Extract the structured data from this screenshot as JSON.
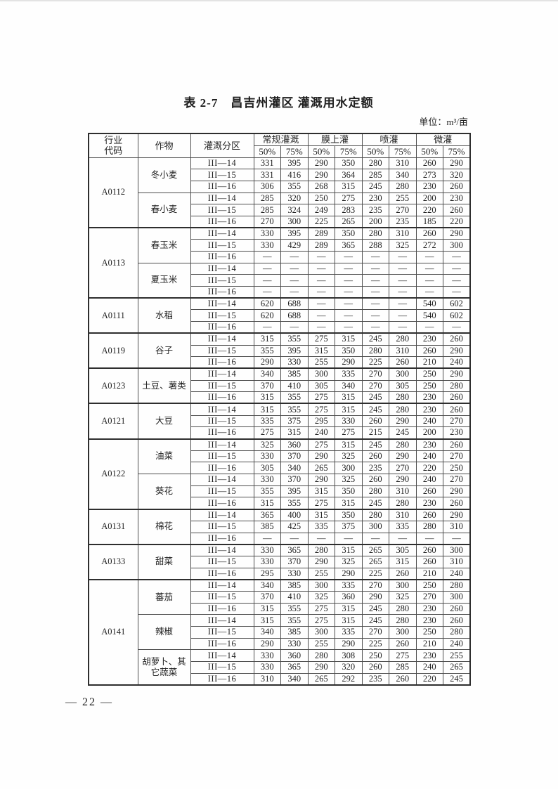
{
  "page": {
    "title": "表 2-7　昌吉州灌区 灌溉用水定额",
    "unit_label": "单位：m³/亩",
    "page_number": "— 22 —"
  },
  "table": {
    "headers": {
      "industry_code": "行业\n代码",
      "crop": "作物",
      "zone": "灌溉分区",
      "groups": [
        "常规灌溉",
        "膜上灌",
        "喷灌",
        "微灌"
      ],
      "percent_labels": [
        "50%",
        "75%"
      ]
    },
    "groups": [
      {
        "code": "A0112",
        "crops": [
          {
            "name": "冬小麦",
            "rows": [
              {
                "zone": "III—14",
                "values": [
                  "331",
                  "395",
                  "290",
                  "350",
                  "280",
                  "310",
                  "260",
                  "290"
                ]
              },
              {
                "zone": "III—15",
                "values": [
                  "331",
                  "416",
                  "290",
                  "364",
                  "285",
                  "340",
                  "273",
                  "320"
                ]
              },
              {
                "zone": "III—16",
                "values": [
                  "306",
                  "355",
                  "268",
                  "315",
                  "245",
                  "280",
                  "230",
                  "260"
                ]
              }
            ]
          },
          {
            "name": "春小麦",
            "rows": [
              {
                "zone": "III—14",
                "values": [
                  "285",
                  "320",
                  "250",
                  "275",
                  "230",
                  "255",
                  "200",
                  "230"
                ]
              },
              {
                "zone": "III—15",
                "values": [
                  "285",
                  "324",
                  "249",
                  "283",
                  "235",
                  "270",
                  "220",
                  "260"
                ]
              },
              {
                "zone": "III—16",
                "values": [
                  "270",
                  "300",
                  "225",
                  "265",
                  "200",
                  "235",
                  "185",
                  "220"
                ]
              }
            ]
          }
        ]
      },
      {
        "code": "A0113",
        "crops": [
          {
            "name": "春玉米",
            "rows": [
              {
                "zone": "III—14",
                "values": [
                  "330",
                  "395",
                  "289",
                  "350",
                  "280",
                  "310",
                  "260",
                  "290"
                ]
              },
              {
                "zone": "III—15",
                "values": [
                  "330",
                  "429",
                  "289",
                  "365",
                  "288",
                  "325",
                  "272",
                  "300"
                ]
              },
              {
                "zone": "III—16",
                "values": [
                  "—",
                  "—",
                  "—",
                  "—",
                  "—",
                  "—",
                  "—",
                  "—"
                ]
              }
            ]
          },
          {
            "name": "夏玉米",
            "rows": [
              {
                "zone": "III—14",
                "values": [
                  "—",
                  "—",
                  "—",
                  "—",
                  "—",
                  "—",
                  "—",
                  "—"
                ]
              },
              {
                "zone": "III—15",
                "values": [
                  "—",
                  "—",
                  "—",
                  "—",
                  "—",
                  "—",
                  "—",
                  "—"
                ]
              },
              {
                "zone": "III—16",
                "values": [
                  "—",
                  "—",
                  "—",
                  "—",
                  "—",
                  "—",
                  "—",
                  "—"
                ]
              }
            ]
          }
        ]
      },
      {
        "code": "A0111",
        "crops": [
          {
            "name": "水稻",
            "rows": [
              {
                "zone": "III—14",
                "values": [
                  "620",
                  "688",
                  "—",
                  "—",
                  "—",
                  "—",
                  "540",
                  "602"
                ]
              },
              {
                "zone": "III—15",
                "values": [
                  "620",
                  "688",
                  "—",
                  "—",
                  "—",
                  "—",
                  "540",
                  "602"
                ]
              },
              {
                "zone": "III—16",
                "values": [
                  "—",
                  "—",
                  "—",
                  "—",
                  "—",
                  "—",
                  "—",
                  "—"
                ]
              }
            ]
          }
        ]
      },
      {
        "code": "A0119",
        "crops": [
          {
            "name": "谷子",
            "rows": [
              {
                "zone": "III—14",
                "values": [
                  "315",
                  "355",
                  "275",
                  "315",
                  "245",
                  "280",
                  "230",
                  "260"
                ]
              },
              {
                "zone": "III—15",
                "values": [
                  "355",
                  "395",
                  "315",
                  "350",
                  "280",
                  "310",
                  "260",
                  "290"
                ]
              },
              {
                "zone": "III—16",
                "values": [
                  "290",
                  "330",
                  "255",
                  "290",
                  "225",
                  "260",
                  "210",
                  "240"
                ]
              }
            ]
          }
        ]
      },
      {
        "code": "A0123",
        "crops": [
          {
            "name": "土豆、薯类",
            "rows": [
              {
                "zone": "III—14",
                "values": [
                  "340",
                  "385",
                  "300",
                  "335",
                  "270",
                  "300",
                  "250",
                  "290"
                ]
              },
              {
                "zone": "III—15",
                "values": [
                  "370",
                  "410",
                  "305",
                  "340",
                  "270",
                  "305",
                  "250",
                  "280"
                ]
              },
              {
                "zone": "III—16",
                "values": [
                  "315",
                  "355",
                  "275",
                  "315",
                  "245",
                  "280",
                  "230",
                  "260"
                ]
              }
            ]
          }
        ]
      },
      {
        "code": "A0121",
        "crops": [
          {
            "name": "大豆",
            "rows": [
              {
                "zone": "III—14",
                "values": [
                  "315",
                  "355",
                  "275",
                  "315",
                  "245",
                  "280",
                  "230",
                  "260"
                ]
              },
              {
                "zone": "III—15",
                "values": [
                  "335",
                  "375",
                  "295",
                  "330",
                  "260",
                  "290",
                  "240",
                  "270"
                ]
              },
              {
                "zone": "III—16",
                "values": [
                  "275",
                  "315",
                  "240",
                  "275",
                  "215",
                  "245",
                  "200",
                  "230"
                ]
              }
            ]
          }
        ]
      },
      {
        "code": "A0122",
        "crops": [
          {
            "name": "油菜",
            "rows": [
              {
                "zone": "III—14",
                "values": [
                  "325",
                  "360",
                  "275",
                  "315",
                  "245",
                  "280",
                  "230",
                  "260"
                ]
              },
              {
                "zone": "III—15",
                "values": [
                  "330",
                  "370",
                  "290",
                  "325",
                  "260",
                  "290",
                  "240",
                  "270"
                ]
              },
              {
                "zone": "III—16",
                "values": [
                  "305",
                  "340",
                  "265",
                  "300",
                  "235",
                  "270",
                  "220",
                  "250"
                ]
              }
            ]
          },
          {
            "name": "葵花",
            "rows": [
              {
                "zone": "III—14",
                "values": [
                  "330",
                  "370",
                  "290",
                  "325",
                  "260",
                  "290",
                  "240",
                  "270"
                ]
              },
              {
                "zone": "III—15",
                "values": [
                  "355",
                  "395",
                  "315",
                  "350",
                  "280",
                  "310",
                  "260",
                  "290"
                ]
              },
              {
                "zone": "III—16",
                "values": [
                  "315",
                  "355",
                  "275",
                  "315",
                  "245",
                  "280",
                  "230",
                  "260"
                ]
              }
            ]
          }
        ]
      },
      {
        "code": "A0131",
        "crops": [
          {
            "name": "棉花",
            "rows": [
              {
                "zone": "III—14",
                "values": [
                  "365",
                  "400",
                  "315",
                  "350",
                  "280",
                  "310",
                  "260",
                  "290"
                ]
              },
              {
                "zone": "III—15",
                "values": [
                  "385",
                  "425",
                  "335",
                  "375",
                  "300",
                  "335",
                  "280",
                  "310"
                ]
              },
              {
                "zone": "III—16",
                "values": [
                  "—",
                  "—",
                  "—",
                  "—",
                  "—",
                  "—",
                  "—",
                  "—"
                ]
              }
            ]
          }
        ]
      },
      {
        "code": "A0133",
        "crops": [
          {
            "name": "甜菜",
            "rows": [
              {
                "zone": "III—14",
                "values": [
                  "330",
                  "365",
                  "280",
                  "315",
                  "265",
                  "305",
                  "260",
                  "300"
                ]
              },
              {
                "zone": "III—15",
                "values": [
                  "330",
                  "370",
                  "290",
                  "325",
                  "265",
                  "315",
                  "260",
                  "310"
                ]
              },
              {
                "zone": "III—16",
                "values": [
                  "295",
                  "330",
                  "255",
                  "290",
                  "225",
                  "260",
                  "210",
                  "240"
                ]
              }
            ]
          }
        ]
      },
      {
        "code": "A0141",
        "crops": [
          {
            "name": "蕃茄",
            "rows": [
              {
                "zone": "III—14",
                "values": [
                  "340",
                  "385",
                  "300",
                  "335",
                  "270",
                  "300",
                  "250",
                  "280"
                ]
              },
              {
                "zone": "III—15",
                "values": [
                  "370",
                  "410",
                  "325",
                  "360",
                  "290",
                  "325",
                  "270",
                  "300"
                ]
              },
              {
                "zone": "III—16",
                "values": [
                  "315",
                  "355",
                  "275",
                  "315",
                  "245",
                  "280",
                  "230",
                  "260"
                ]
              }
            ]
          },
          {
            "name": "辣椒",
            "rows": [
              {
                "zone": "III—14",
                "values": [
                  "315",
                  "355",
                  "275",
                  "315",
                  "245",
                  "280",
                  "230",
                  "260"
                ]
              },
              {
                "zone": "III—15",
                "values": [
                  "340",
                  "385",
                  "300",
                  "335",
                  "270",
                  "300",
                  "250",
                  "280"
                ]
              },
              {
                "zone": "III—16",
                "values": [
                  "290",
                  "330",
                  "255",
                  "290",
                  "225",
                  "260",
                  "210",
                  "240"
                ]
              }
            ]
          },
          {
            "name": "胡萝卜、其它蔬菜",
            "rows": [
              {
                "zone": "III—14",
                "values": [
                  "330",
                  "360",
                  "280",
                  "308",
                  "250",
                  "275",
                  "230",
                  "255"
                ]
              },
              {
                "zone": "III—15",
                "values": [
                  "330",
                  "365",
                  "290",
                  "320",
                  "260",
                  "285",
                  "240",
                  "265"
                ]
              },
              {
                "zone": "III—16",
                "values": [
                  "310",
                  "340",
                  "265",
                  "292",
                  "235",
                  "260",
                  "220",
                  "245"
                ]
              }
            ]
          }
        ]
      }
    ]
  }
}
